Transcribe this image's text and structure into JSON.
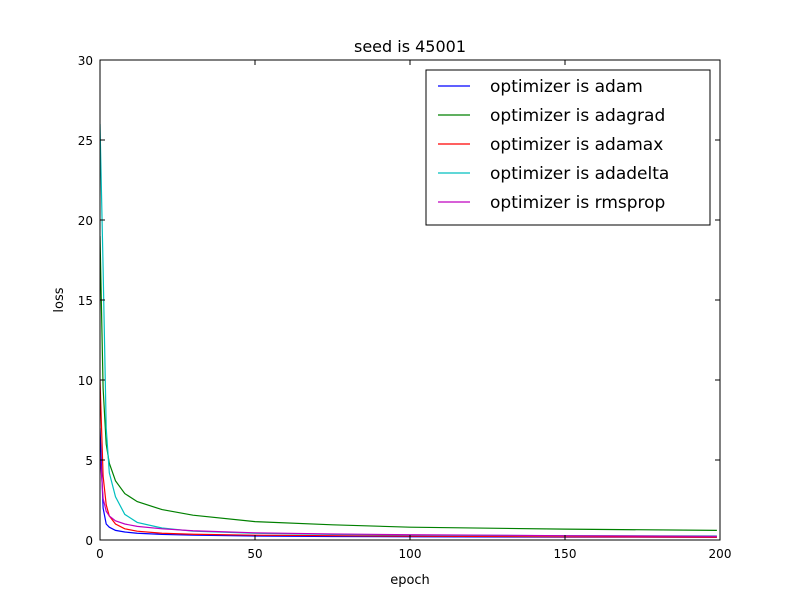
{
  "chart_data": {
    "type": "line",
    "title": "seed is  45001",
    "xlabel": "epoch",
    "ylabel": "loss",
    "xlim": [
      0,
      200
    ],
    "ylim": [
      0,
      30
    ],
    "xticks": [
      "0",
      "50",
      "100",
      "150",
      "200"
    ],
    "yticks": [
      "0",
      "5",
      "10",
      "15",
      "20",
      "25",
      "30"
    ],
    "grid": false,
    "legend_position": "top-right",
    "series": [
      {
        "name": "optimizer is adam",
        "color": "#0000ff",
        "x": [
          0,
          1,
          2,
          3,
          5,
          8,
          12,
          20,
          30,
          50,
          75,
          100,
          150,
          199
        ],
        "y": [
          7.0,
          2.0,
          1.0,
          0.8,
          0.6,
          0.5,
          0.42,
          0.35,
          0.3,
          0.25,
          0.22,
          0.2,
          0.18,
          0.17
        ]
      },
      {
        "name": "optimizer is adagrad",
        "color": "#008000",
        "x": [
          0,
          1,
          2,
          3,
          5,
          8,
          12,
          20,
          30,
          50,
          75,
          100,
          150,
          199
        ],
        "y": [
          19.0,
          9.5,
          6.0,
          4.8,
          3.7,
          2.9,
          2.4,
          1.9,
          1.55,
          1.15,
          0.95,
          0.8,
          0.68,
          0.6
        ]
      },
      {
        "name": "optimizer is adamax",
        "color": "#ff0000",
        "x": [
          0,
          1,
          2,
          3,
          5,
          8,
          12,
          20,
          30,
          50,
          75,
          100,
          150,
          199
        ],
        "y": [
          10.0,
          4.0,
          2.2,
          1.5,
          1.0,
          0.7,
          0.55,
          0.42,
          0.36,
          0.3,
          0.27,
          0.24,
          0.2,
          0.18
        ]
      },
      {
        "name": "optimizer is adadelta",
        "color": "#00bfbf",
        "x": [
          0,
          1,
          2,
          3,
          5,
          8,
          12,
          20,
          30,
          50,
          75,
          100,
          150,
          199
        ],
        "y": [
          26.0,
          17.0,
          7.0,
          4.2,
          2.7,
          1.6,
          1.1,
          0.75,
          0.55,
          0.42,
          0.35,
          0.3,
          0.27,
          0.25
        ]
      },
      {
        "name": "optimizer is rmsprop",
        "color": "#bf00bf",
        "x": [
          0,
          1,
          2,
          3,
          5,
          8,
          12,
          20,
          30,
          50,
          75,
          100,
          150,
          199
        ],
        "y": [
          5.5,
          2.6,
          1.8,
          1.5,
          1.2,
          1.0,
          0.85,
          0.7,
          0.58,
          0.45,
          0.38,
          0.33,
          0.27,
          0.23
        ]
      }
    ]
  }
}
